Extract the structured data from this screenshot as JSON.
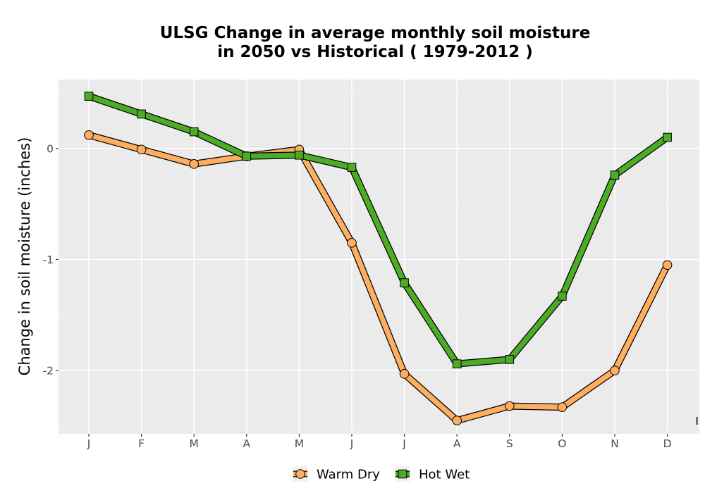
{
  "chart_data": {
    "type": "line",
    "title": [
      "ULSG  Change in average monthly soil moisture",
      "in 2050 vs Historical ( 1979-2012 )"
    ],
    "xlabel": "",
    "ylabel": "Change in soil moisture (inches)",
    "categories": [
      "J",
      "F",
      "M",
      "A",
      "M",
      "J",
      "J",
      "A",
      "S",
      "O",
      "N",
      "D"
    ],
    "y_ticks": [
      0,
      -1,
      -2
    ],
    "y_tick_labels": [
      "0",
      "-1",
      "-2"
    ],
    "ylim": [
      -2.57,
      0.62
    ],
    "grid": true,
    "legend_position": "bottom",
    "series": [
      {
        "name": "Warm Dry",
        "color": "#FDAE61",
        "marker": "circle",
        "values": [
          0.12,
          -0.01,
          -0.14,
          -0.07,
          -0.01,
          -0.85,
          -2.03,
          -2.45,
          -2.32,
          -2.33,
          -2.0,
          -1.05
        ]
      },
      {
        "name": "Hot Wet",
        "color": "#4DAC26",
        "marker": "square",
        "values": [
          0.47,
          0.31,
          0.15,
          -0.07,
          -0.06,
          -0.17,
          -1.21,
          -1.94,
          -1.9,
          -1.33,
          -0.24,
          0.1
        ]
      }
    ],
    "edge_mark": "I"
  }
}
